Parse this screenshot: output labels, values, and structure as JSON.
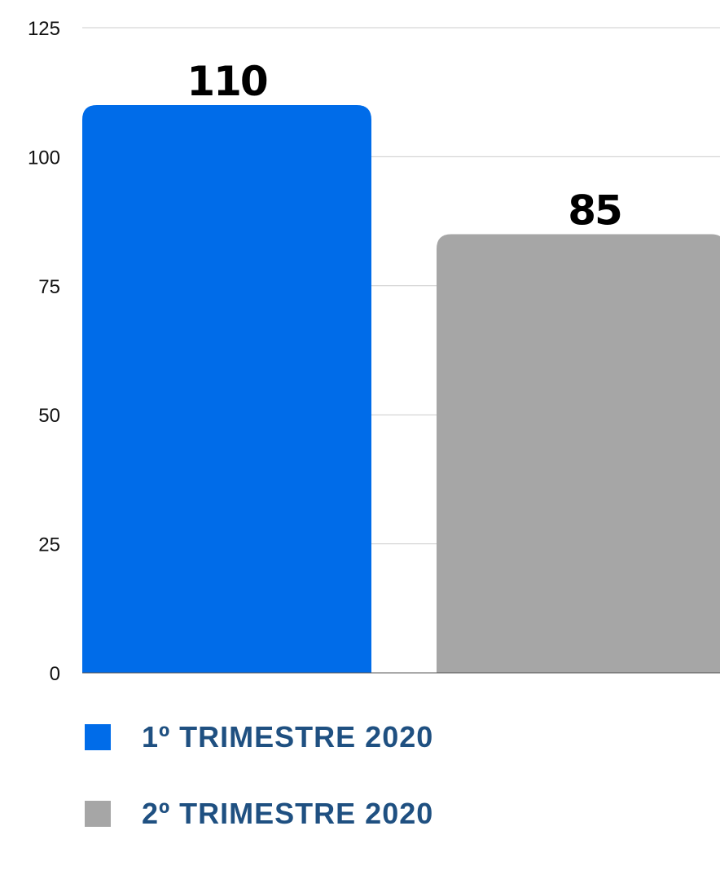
{
  "colors": {
    "label": "#1f5081",
    "grid": "#cccccc",
    "axis": "#555555"
  },
  "chart_data": {
    "type": "bar",
    "categories": [
      "1º TRIMESTRE 2020",
      "2º TRIMESTRE 2020"
    ],
    "values": [
      110,
      85
    ],
    "data_labels": [
      "110",
      "85"
    ],
    "colors": [
      "#006ce9",
      "#a6a6a6"
    ],
    "ylim": [
      0,
      125
    ],
    "yticks": [
      0,
      25,
      50,
      75,
      100,
      125
    ],
    "ytick_labels": [
      "0",
      "25",
      "50",
      "75",
      "100",
      "125"
    ],
    "grid": true,
    "legend_position": "bottom-left"
  }
}
